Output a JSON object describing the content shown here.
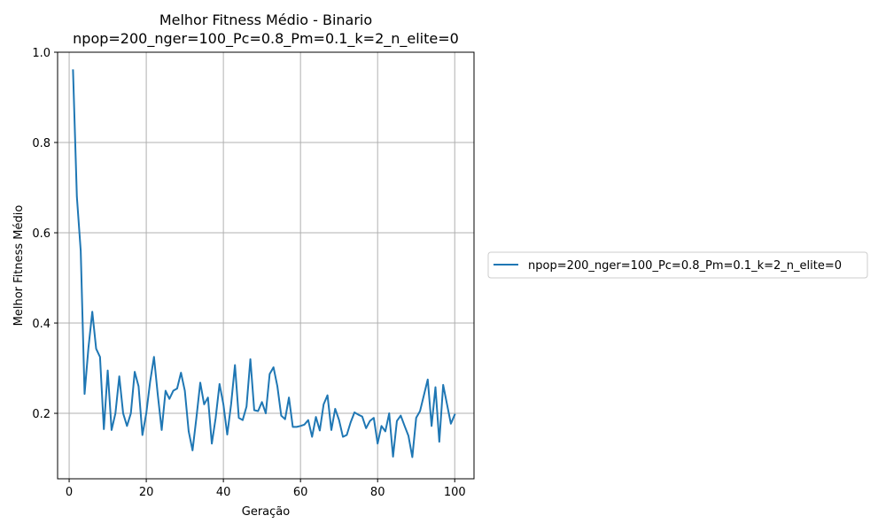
{
  "chart_data": {
    "type": "line",
    "title": "Melhor Fitness Médio - Binario",
    "subtitle": "npop=200_nger=100_Pc=0.8_Pm=0.1_k=2_n_elite=0",
    "xlabel": "Geração",
    "ylabel": "Melhor Fitness Médio",
    "xlim": [
      -3,
      105
    ],
    "ylim": [
      0.055,
      1.0
    ],
    "xticks": [
      0,
      20,
      40,
      60,
      80,
      100
    ],
    "xtick_labels": [
      "0",
      "20",
      "40",
      "60",
      "80",
      "100"
    ],
    "yticks": [
      0.2,
      0.4,
      0.6,
      0.8,
      1.0
    ],
    "ytick_labels": [
      "0.2",
      "0.4",
      "0.6",
      "0.8",
      "1.0"
    ],
    "grid": true,
    "legend_position": "outside-right",
    "series": [
      {
        "name": "npop=200_nger=100_Pc=0.8_Pm=0.1_k=2_n_elite=0",
        "color": "#1f77b4",
        "x": [
          1,
          2,
          3,
          4,
          5,
          6,
          7,
          8,
          9,
          10,
          11,
          12,
          13,
          14,
          15,
          16,
          17,
          18,
          19,
          20,
          21,
          22,
          23,
          24,
          25,
          26,
          27,
          28,
          29,
          30,
          31,
          32,
          33,
          34,
          35,
          36,
          37,
          38,
          39,
          40,
          41,
          42,
          43,
          44,
          45,
          46,
          47,
          48,
          49,
          50,
          51,
          52,
          53,
          54,
          55,
          56,
          57,
          58,
          59,
          60,
          61,
          62,
          63,
          64,
          65,
          66,
          67,
          68,
          69,
          70,
          71,
          72,
          73,
          74,
          75,
          76,
          77,
          78,
          79,
          80,
          81,
          82,
          83,
          84,
          85,
          86,
          87,
          88,
          89,
          90,
          91,
          92,
          93,
          94,
          95,
          96,
          97,
          98,
          99,
          100
        ],
        "y": [
          0.96,
          0.68,
          0.56,
          0.243,
          0.345,
          0.425,
          0.343,
          0.325,
          0.165,
          0.295,
          0.163,
          0.2,
          0.282,
          0.2,
          0.172,
          0.2,
          0.292,
          0.26,
          0.152,
          0.2,
          0.27,
          0.325,
          0.24,
          0.163,
          0.25,
          0.232,
          0.25,
          0.255,
          0.29,
          0.25,
          0.16,
          0.118,
          0.19,
          0.268,
          0.22,
          0.235,
          0.133,
          0.19,
          0.265,
          0.22,
          0.153,
          0.22,
          0.307,
          0.19,
          0.185,
          0.215,
          0.32,
          0.207,
          0.205,
          0.225,
          0.2,
          0.287,
          0.302,
          0.26,
          0.195,
          0.187,
          0.235,
          0.17,
          0.17,
          0.172,
          0.175,
          0.185,
          0.148,
          0.192,
          0.162,
          0.22,
          0.24,
          0.163,
          0.21,
          0.185,
          0.148,
          0.152,
          0.18,
          0.202,
          0.197,
          0.193,
          0.167,
          0.183,
          0.19,
          0.133,
          0.172,
          0.16,
          0.2,
          0.104,
          0.183,
          0.195,
          0.172,
          0.15,
          0.103,
          0.19,
          0.205,
          0.24,
          0.275,
          0.172,
          0.258,
          0.137,
          0.263,
          0.22,
          0.177,
          0.197
        ]
      }
    ]
  }
}
